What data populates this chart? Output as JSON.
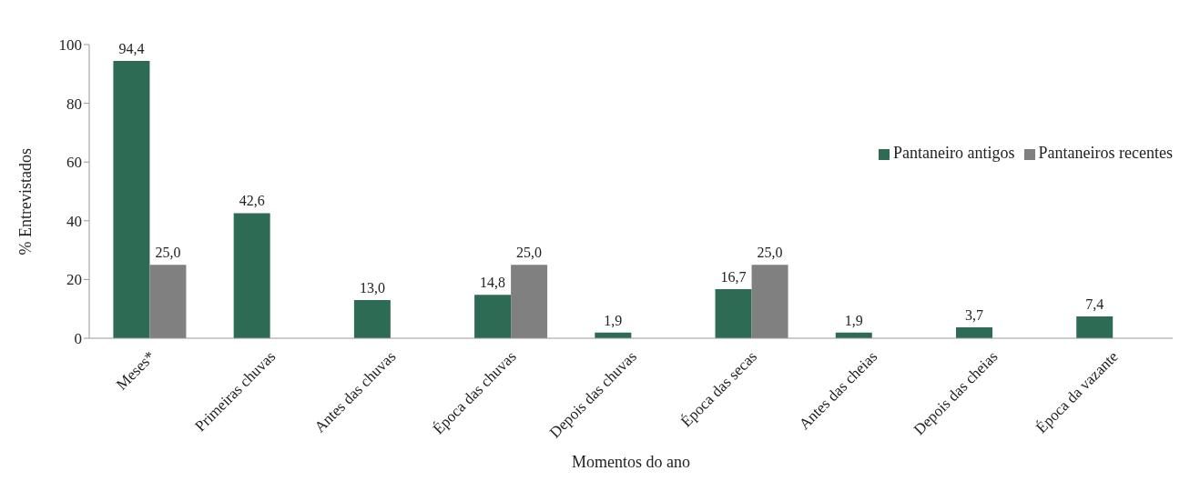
{
  "chart_data": {
    "type": "bar",
    "xlabel": "Momentos do ano",
    "ylabel": "% Entrevistados",
    "categories": [
      "Meses*",
      "Primeiras chuvas",
      "Antes das chuvas",
      "Época das chuvas",
      "Depois das chuvas",
      "Época das secas",
      "Antes das cheias",
      "Depois das cheias",
      "Época da vazante"
    ],
    "series": [
      {
        "name": "Pantaneiro antigos",
        "color": "#2e6b55",
        "values": [
          94.4,
          42.6,
          13.0,
          14.8,
          1.9,
          16.7,
          1.9,
          3.7,
          7.4
        ],
        "value_labels": [
          "94,4",
          "42,6",
          "13,0",
          "14,8",
          "1,9",
          "16,7",
          "1,9",
          "3,7",
          "7,4"
        ]
      },
      {
        "name": "Pantaneiros recentes",
        "color": "#808080",
        "values": [
          25.0,
          null,
          null,
          25.0,
          null,
          25.0,
          null,
          null,
          null
        ],
        "value_labels": [
          "25,0",
          null,
          null,
          "25,0",
          null,
          "25,0",
          null,
          null,
          null
        ]
      }
    ],
    "ylim": [
      0,
      100
    ],
    "yticks": [
      0,
      20,
      40,
      60,
      80,
      100
    ],
    "grid": false,
    "legend": "top right"
  }
}
